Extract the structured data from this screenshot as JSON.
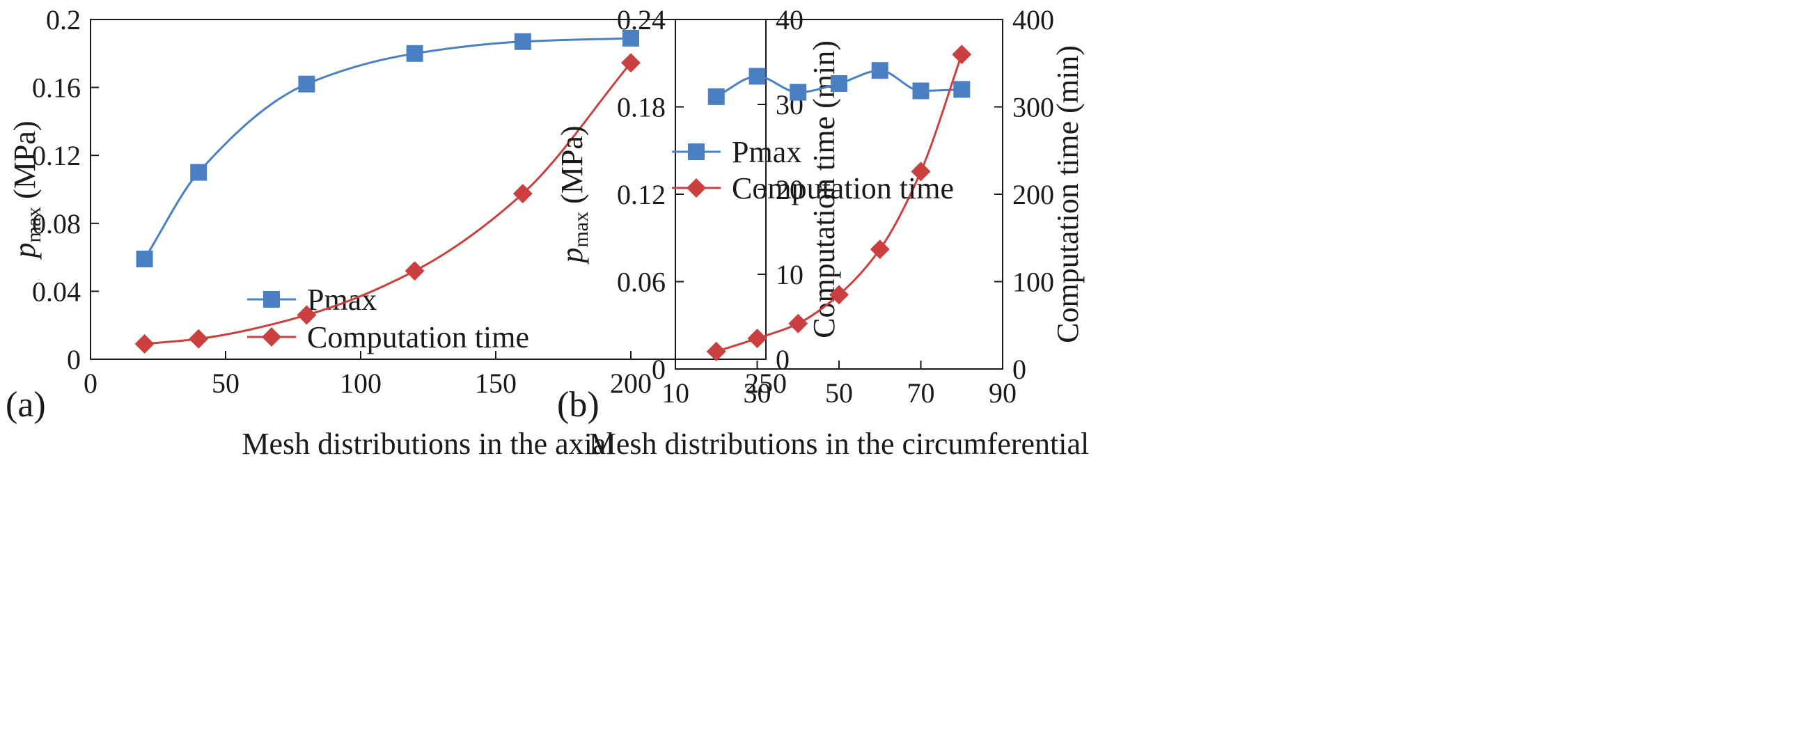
{
  "chart_data": [
    {
      "type": "line",
      "panel_label": "(a)",
      "xlabel": "Mesh distributions in the axial",
      "ylabel_main": "p",
      "ylabel_sub": "max",
      "ylabel_unit": " (MPa)",
      "y2label": "Computation time (min)",
      "xlim": [
        0,
        250
      ],
      "xticks": [
        0,
        50,
        100,
        150,
        200,
        250
      ],
      "xtick_labels": [
        "0",
        "50",
        "100",
        "150",
        "200",
        "250"
      ],
      "ylim": [
        0,
        0.2
      ],
      "yticks": [
        0,
        0.04,
        0.08,
        0.12,
        0.16,
        0.2
      ],
      "ytick_labels": [
        "0",
        "0.04",
        "0.08",
        "0.12",
        "0.16",
        "0.2"
      ],
      "y2lim": [
        0,
        40
      ],
      "y2ticks": [
        0,
        10,
        20,
        30,
        40
      ],
      "y2tick_labels": [
        "0",
        "10",
        "20",
        "30",
        "40"
      ],
      "legend_position": "lower-right",
      "series": [
        {
          "name": "Pmax",
          "axis": "left",
          "marker": "square",
          "color": "#4a7fc1",
          "x": [
            20,
            40,
            80,
            120,
            160,
            200
          ],
          "values": [
            0.059,
            0.11,
            0.162,
            0.18,
            0.187,
            0.189
          ]
        },
        {
          "name": "Computation time",
          "axis": "right",
          "marker": "diamond",
          "color": "#c9403f",
          "x": [
            20,
            40,
            80,
            120,
            160,
            200
          ],
          "values": [
            1.8,
            2.4,
            5.2,
            10.4,
            19.5,
            34.9
          ]
        }
      ]
    },
    {
      "type": "line",
      "panel_label": "(b)",
      "xlabel": "Mesh distributions in the circumferential",
      "ylabel_main": "p",
      "ylabel_sub": "max",
      "ylabel_unit": " (MPa)",
      "y2label": "Computation time (min)",
      "xlim": [
        10,
        90
      ],
      "xticks": [
        10,
        30,
        50,
        70,
        90
      ],
      "xtick_labels": [
        "10",
        "30",
        "50",
        "70",
        "90"
      ],
      "ylim": [
        0,
        0.24
      ],
      "yticks": [
        0,
        0.06,
        0.12,
        0.18,
        0.24
      ],
      "ytick_labels": [
        "0",
        "0.06",
        "0.12",
        "0.18",
        "0.24"
      ],
      "y2lim": [
        0,
        400
      ],
      "y2ticks": [
        0,
        100,
        200,
        300,
        400
      ],
      "y2tick_labels": [
        "0",
        "100",
        "200",
        "300",
        "400"
      ],
      "legend_position": "center-left",
      "series": [
        {
          "name": "Pmax",
          "axis": "left",
          "marker": "square",
          "color": "#4a7fc1",
          "x": [
            20,
            30,
            40,
            50,
            60,
            70,
            80
          ],
          "values": [
            0.187,
            0.201,
            0.19,
            0.196,
            0.205,
            0.191,
            0.192
          ]
        },
        {
          "name": "Computation time",
          "axis": "right",
          "marker": "diamond",
          "color": "#c9403f",
          "x": [
            20,
            30,
            40,
            50,
            60,
            70,
            80
          ],
          "values": [
            20,
            35,
            52,
            85,
            137,
            226,
            360
          ]
        }
      ]
    }
  ]
}
